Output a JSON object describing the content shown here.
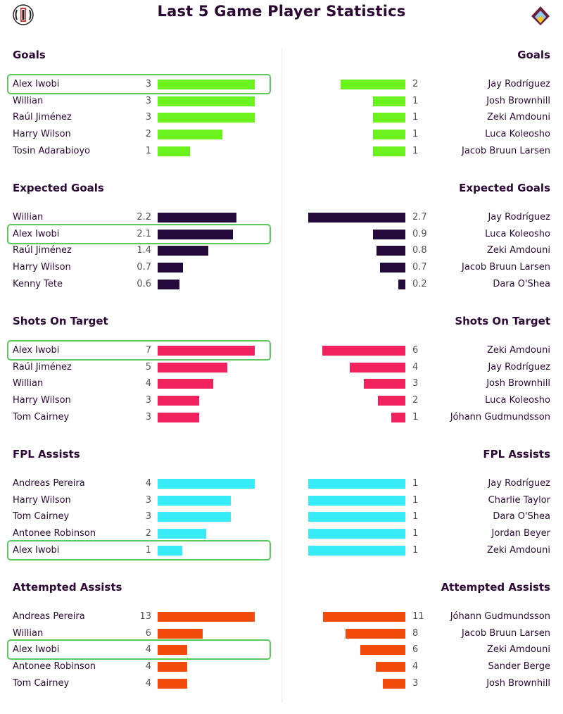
{
  "title": "Last 5 Game Player Statistics",
  "icons": {
    "left_crest": "fulham-crest-icon",
    "right_crest": "burnley-crest-icon"
  },
  "chart_data": {
    "type": "bar",
    "sections": [
      {
        "title": "Goals",
        "color": "#6bf21c",
        "max": 3,
        "left": [
          {
            "player": "Alex Iwobi",
            "value": 3,
            "value_label": "3",
            "highlight": true
          },
          {
            "player": "Willian",
            "value": 3,
            "value_label": "3"
          },
          {
            "player": "Raúl Jiménez",
            "value": 3,
            "value_label": "3"
          },
          {
            "player": "Harry Wilson",
            "value": 2,
            "value_label": "2"
          },
          {
            "player": "Tosin Adarabioyo",
            "value": 1,
            "value_label": "1"
          }
        ],
        "right": [
          {
            "player": "Jay Rodríguez",
            "value": 2,
            "value_label": "2"
          },
          {
            "player": "Josh Brownhill",
            "value": 1,
            "value_label": "1"
          },
          {
            "player": "Zeki Amdouni",
            "value": 1,
            "value_label": "1"
          },
          {
            "player": "Luca Koleosho",
            "value": 1,
            "value_label": "1"
          },
          {
            "player": "Jacob Bruun Larsen",
            "value": 1,
            "value_label": "1"
          }
        ]
      },
      {
        "title": "Expected Goals",
        "color": "#240a3a",
        "max": 2.7,
        "left": [
          {
            "player": "Willian",
            "value": 2.2,
            "value_label": "2.2"
          },
          {
            "player": "Alex Iwobi",
            "value": 2.1,
            "value_label": "2.1",
            "highlight": true
          },
          {
            "player": "Raúl Jiménez",
            "value": 1.4,
            "value_label": "1.4"
          },
          {
            "player": "Harry Wilson",
            "value": 0.7,
            "value_label": "0.7"
          },
          {
            "player": "Kenny Tete",
            "value": 0.6,
            "value_label": "0.6"
          }
        ],
        "right": [
          {
            "player": "Jay Rodríguez",
            "value": 2.7,
            "value_label": "2.7"
          },
          {
            "player": "Luca Koleosho",
            "value": 0.9,
            "value_label": "0.9"
          },
          {
            "player": "Zeki Amdouni",
            "value": 0.8,
            "value_label": "0.8"
          },
          {
            "player": "Jacob Bruun Larsen",
            "value": 0.7,
            "value_label": "0.7"
          },
          {
            "player": "Dara O'Shea",
            "value": 0.2,
            "value_label": "0.2"
          }
        ]
      },
      {
        "title": "Shots On Target",
        "color": "#f2225f",
        "max": 7,
        "left": [
          {
            "player": "Alex Iwobi",
            "value": 7,
            "value_label": "7",
            "highlight": true
          },
          {
            "player": "Raúl Jiménez",
            "value": 5,
            "value_label": "5"
          },
          {
            "player": "Willian",
            "value": 4,
            "value_label": "4"
          },
          {
            "player": "Harry Wilson",
            "value": 3,
            "value_label": "3"
          },
          {
            "player": "Tom Cairney",
            "value": 3,
            "value_label": "3"
          }
        ],
        "right": [
          {
            "player": "Zeki Amdouni",
            "value": 6,
            "value_label": "6"
          },
          {
            "player": "Jay Rodríguez",
            "value": 4,
            "value_label": "4"
          },
          {
            "player": "Josh Brownhill",
            "value": 3,
            "value_label": "3"
          },
          {
            "player": "Luca Koleosho",
            "value": 2,
            "value_label": "2"
          },
          {
            "player": "Jóhann Gudmundsson",
            "value": 1,
            "value_label": "1"
          }
        ]
      },
      {
        "title": "FPL Assists",
        "color": "#38ecf8",
        "max": 4,
        "left": [
          {
            "player": "Andreas Pereira",
            "value": 4,
            "value_label": "4"
          },
          {
            "player": "Harry Wilson",
            "value": 3,
            "value_label": "3"
          },
          {
            "player": "Tom Cairney",
            "value": 3,
            "value_label": "3"
          },
          {
            "player": "Antonee Robinson",
            "value": 2,
            "value_label": "2"
          },
          {
            "player": "Alex Iwobi",
            "value": 1,
            "value_label": "1",
            "highlight": true
          }
        ],
        "right": [
          {
            "player": "Jay Rodríguez",
            "value": 1,
            "value_label": "1",
            "full": true
          },
          {
            "player": "Charlie Taylor",
            "value": 1,
            "value_label": "1",
            "full": true
          },
          {
            "player": "Dara O'Shea",
            "value": 1,
            "value_label": "1",
            "full": true
          },
          {
            "player": "Jordan Beyer",
            "value": 1,
            "value_label": "1",
            "full": true
          },
          {
            "player": "Zeki Amdouni",
            "value": 1,
            "value_label": "1",
            "full": true
          }
        ]
      },
      {
        "title": "Attempted Assists",
        "color": "#f44c0c",
        "max": 13,
        "left": [
          {
            "player": "Andreas Pereira",
            "value": 13,
            "value_label": "13"
          },
          {
            "player": "Willian",
            "value": 6,
            "value_label": "6"
          },
          {
            "player": "Alex Iwobi",
            "value": 4,
            "value_label": "4",
            "highlight": true
          },
          {
            "player": "Antonee Robinson",
            "value": 4,
            "value_label": "4"
          },
          {
            "player": "Tom Cairney",
            "value": 4,
            "value_label": "4"
          }
        ],
        "right": [
          {
            "player": "Jóhann Gudmundsson",
            "value": 11,
            "value_label": "11"
          },
          {
            "player": "Jacob Bruun Larsen",
            "value": 8,
            "value_label": "8"
          },
          {
            "player": "Zeki Amdouni",
            "value": 6,
            "value_label": "6"
          },
          {
            "player": "Sander Berge",
            "value": 4,
            "value_label": "4"
          },
          {
            "player": "Josh Brownhill",
            "value": 3,
            "value_label": "3"
          }
        ]
      }
    ]
  }
}
